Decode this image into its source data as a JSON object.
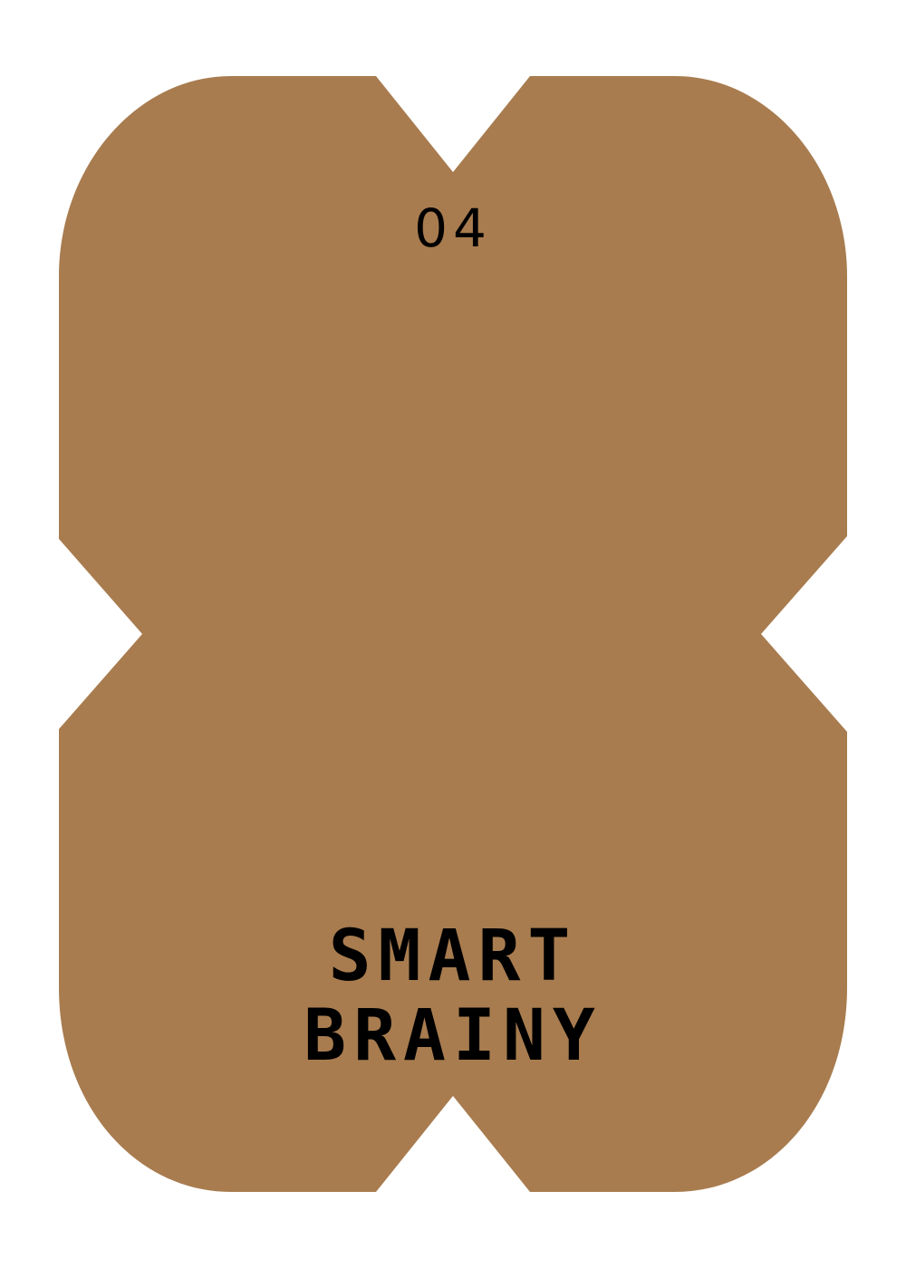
{
  "card": {
    "number": "04",
    "title_line_1": "SMART",
    "title_line_2": "BRAINY",
    "background_color": "#a87c4f",
    "page_background": "#ffffff",
    "text_color": "#000000"
  }
}
